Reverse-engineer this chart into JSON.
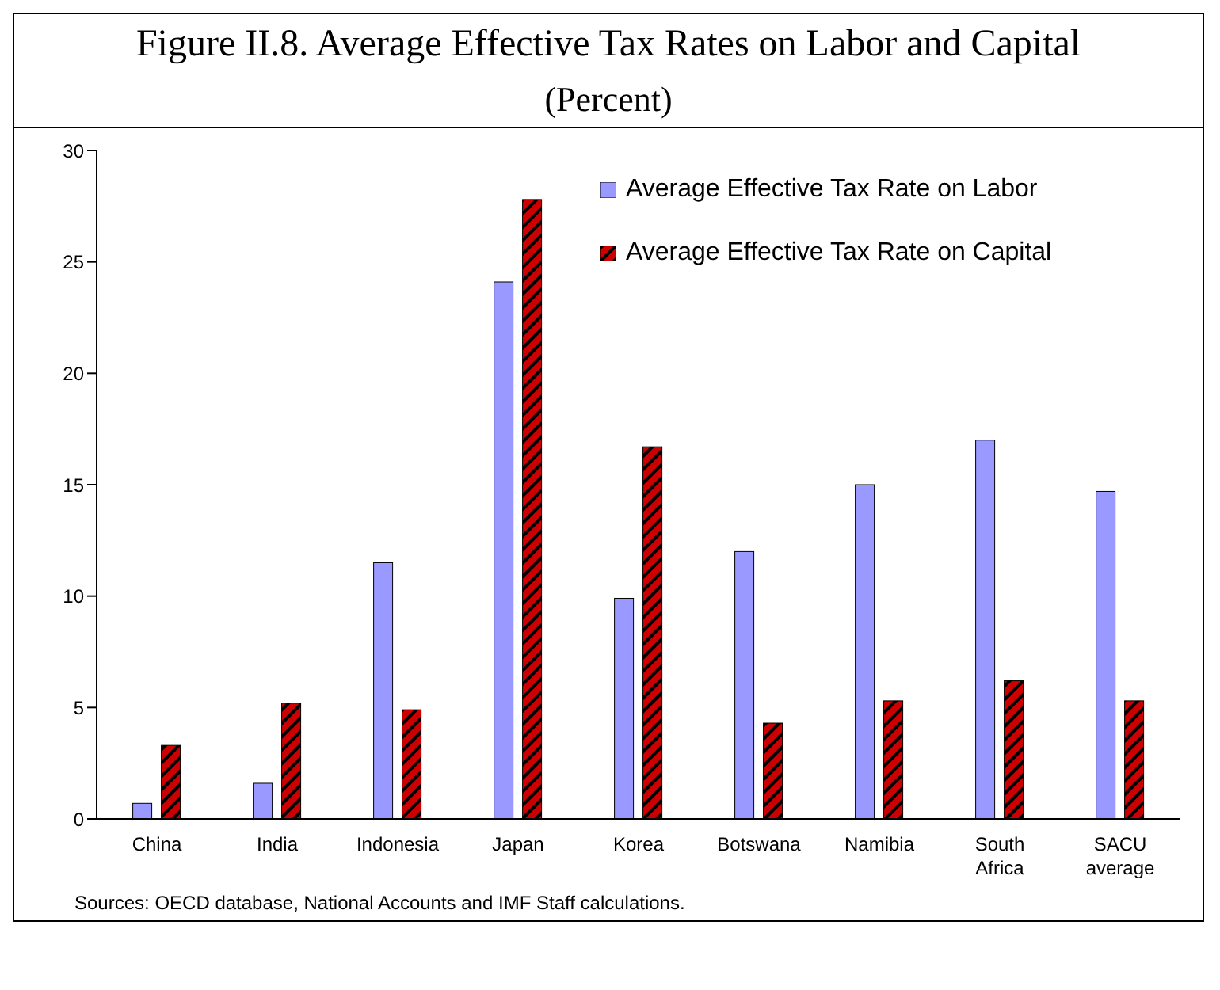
{
  "chart_data": {
    "type": "bar",
    "title": "Figure II.8. Average Effective Tax Rates on Labor and Capital",
    "subtitle": "(Percent)",
    "categories": [
      "China",
      "India",
      "Indonesia",
      "Japan",
      "Korea",
      "Botswana",
      "Namibia",
      "South Africa",
      "SACU average"
    ],
    "series": [
      {
        "name": "Average Effective Tax Rate on Labor",
        "color": "#9999ff",
        "values": [
          0.7,
          1.6,
          11.5,
          24.1,
          9.9,
          12.0,
          15.0,
          17.0,
          14.7
        ]
      },
      {
        "name": "Average Effective Tax Rate on Capital",
        "color": "#cc0000",
        "values": [
          3.3,
          5.2,
          4.9,
          27.8,
          16.7,
          4.3,
          5.3,
          6.2,
          5.3
        ]
      }
    ],
    "ylim": [
      0,
      30
    ],
    "yticks": [
      0,
      5,
      10,
      15,
      20,
      25,
      30
    ],
    "grid": false,
    "legend": "top right",
    "annotations": [
      "Sources: OECD database, National Accounts and IMF Staff calculations."
    ]
  }
}
